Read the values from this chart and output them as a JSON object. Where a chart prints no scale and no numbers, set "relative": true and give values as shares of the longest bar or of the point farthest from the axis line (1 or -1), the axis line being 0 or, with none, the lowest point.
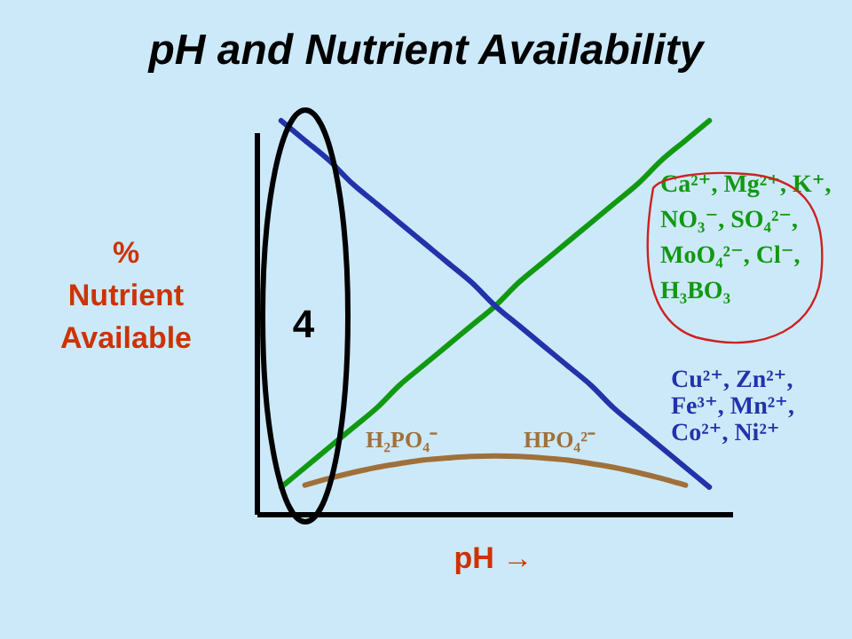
{
  "chart_data": {
    "type": "line",
    "relative": true,
    "title": "pH and Nutrient Availability",
    "xlabel": "pH →",
    "ylabel": "% Nutrient Available",
    "marker": "none",
    "line_style": "solid",
    "categories": [
      null,
      null,
      null,
      null,
      null,
      null,
      null,
      null,
      null,
      null,
      null,
      null,
      null,
      null,
      null,
      null,
      null,
      null,
      null,
      null,
      null
    ],
    "series": [
      {
        "name": "Ca²⁺, Mg²⁺, K⁺,\nNO₃⁻, SO₄²⁻,\nMoO₄²⁻, Cl⁻,\nH₃BO₃",
        "color": "#119911",
        "values": [
          null,
          0.07,
          0.12,
          0.17,
          0.22,
          0.27,
          0.33,
          0.38,
          0.43,
          0.48,
          0.53,
          0.59,
          0.64,
          0.69,
          0.74,
          0.79,
          0.84,
          0.9,
          0.95,
          1,
          null
        ]
      },
      {
        "name": "Cu²⁺, Zn²⁺,\nFe³⁺, Mn²⁺,\nCo²⁺, Ni²⁺",
        "color": "#2233aa",
        "values": [
          null,
          1,
          0.95,
          0.9,
          0.84,
          0.79,
          0.74,
          0.69,
          0.64,
          0.59,
          0.53,
          0.48,
          0.43,
          0.38,
          0.33,
          0.27,
          0.22,
          0.17,
          0.12,
          0.07,
          null
        ]
      },
      {
        "color": "#a0703a",
        "values": [
          null,
          null,
          0.075,
          0.092,
          0.107,
          0.12,
          0.13,
          0.139,
          0.144,
          0.148,
          0.149,
          0.148,
          0.144,
          0.139,
          0.13,
          0.12,
          0.107,
          0.092,
          0.075,
          null,
          null
        ]
      }
    ],
    "annotations": [
      "4",
      "H₂PO₄⁻",
      "HPO₄²⁻"
    ]
  }
}
